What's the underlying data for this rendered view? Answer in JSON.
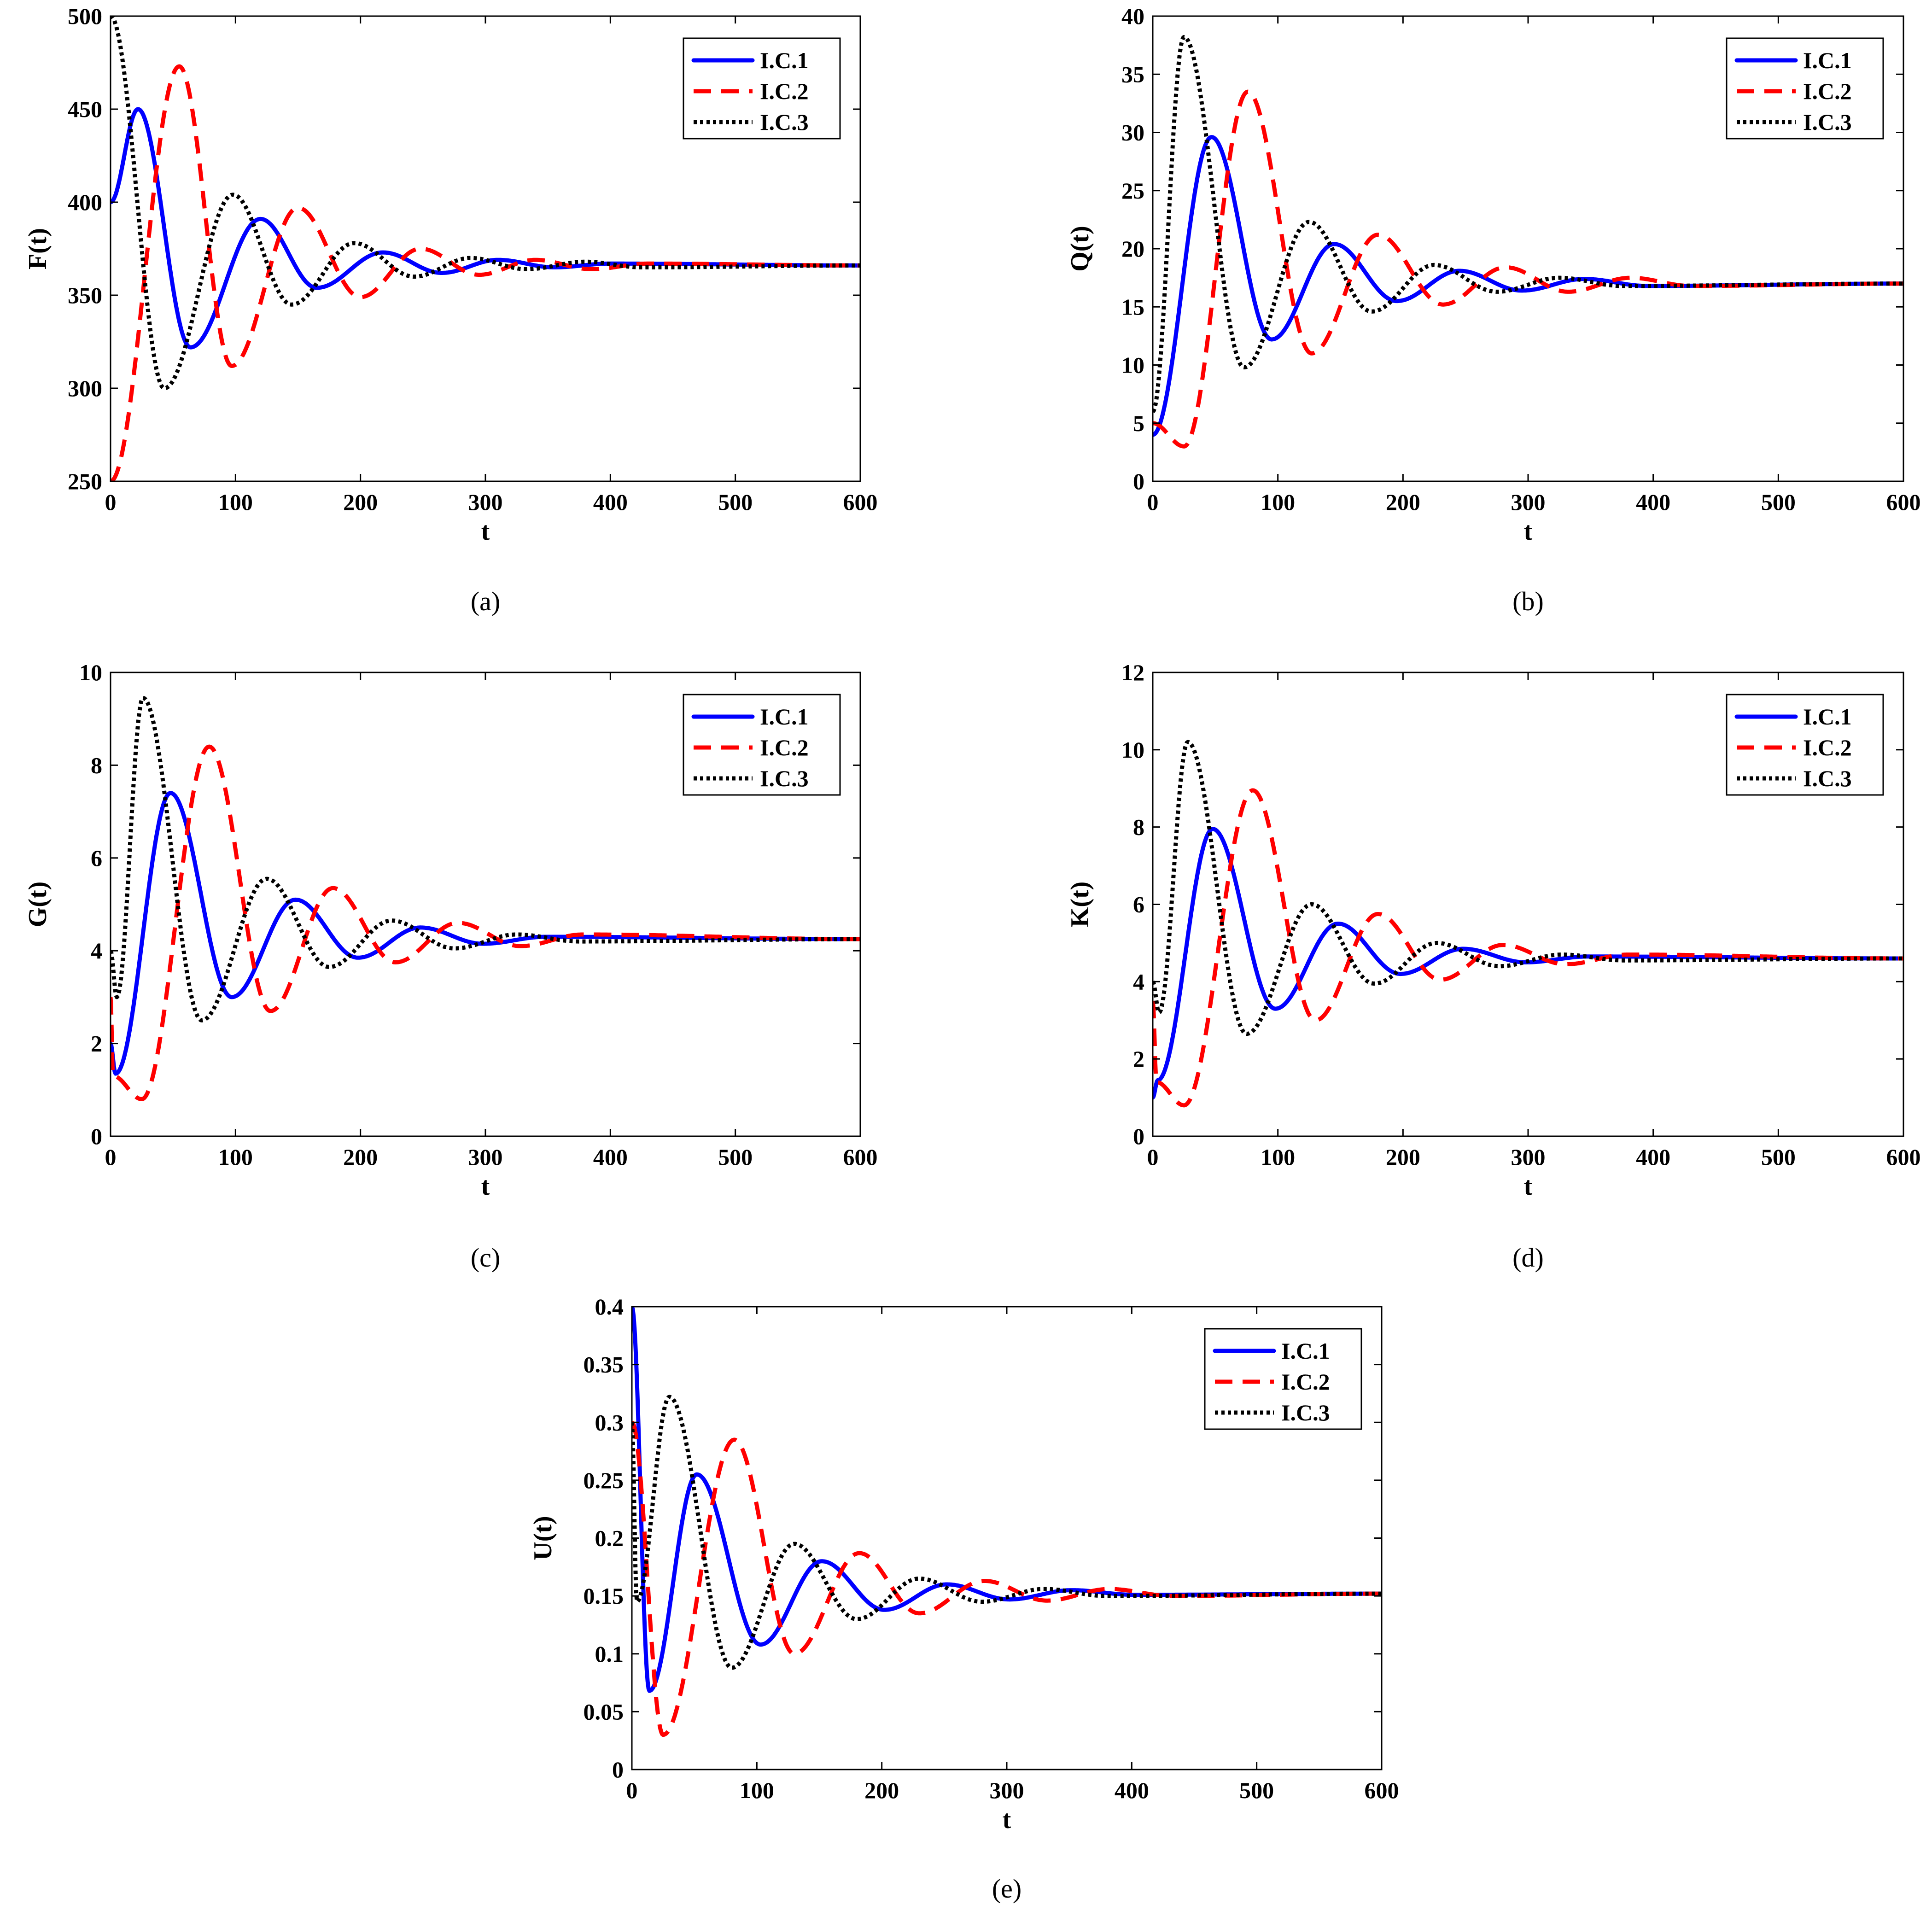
{
  "figure": {
    "line_styles": {
      "I.C.1": {
        "color": "#0000ff",
        "dash": "solid"
      },
      "I.C.2": {
        "color": "#ff0000",
        "dash": "dashed"
      },
      "I.C.3": {
        "color": "#000000",
        "dash": "dotted"
      }
    }
  },
  "chart_data": [
    {
      "type": "line",
      "caption": "(a)",
      "xlabel": "t",
      "ylabel": "F(t)",
      "xlim": [
        0,
        600
      ],
      "ylim": [
        250,
        500
      ],
      "xticks": [
        0,
        100,
        200,
        300,
        400,
        500,
        600
      ],
      "yticks": [
        250,
        300,
        350,
        400,
        450,
        500
      ],
      "grid": false,
      "legend_position": "top-right",
      "equilibrium": 366,
      "series": [
        {
          "name": "I.C.1",
          "color": "#0000ff",
          "dash": "solid",
          "x": [
            0,
            22,
            64,
            120,
            165,
            218,
            265,
            310,
            355,
            400,
            600
          ],
          "y": [
            400,
            450,
            322,
            391,
            354,
            373,
            362,
            369,
            365,
            367,
            366
          ]
        },
        {
          "name": "I.C.2",
          "color": "#ff0000",
          "dash": "dashed",
          "x": [
            0,
            55,
            97,
            150,
            200,
            248,
            295,
            340,
            385,
            430,
            600
          ],
          "y": [
            250,
            473,
            312,
            397,
            349,
            375,
            361,
            369,
            364,
            367,
            366
          ]
        },
        {
          "name": "I.C.3",
          "color": "#000000",
          "dash": "dotted",
          "x": [
            0,
            43,
            98,
            145,
            195,
            243,
            288,
            333,
            380,
            425,
            600
          ],
          "y": [
            500,
            300,
            404,
            345,
            378,
            360,
            370,
            364,
            368,
            365,
            366
          ]
        }
      ]
    },
    {
      "type": "line",
      "caption": "(b)",
      "xlabel": "t",
      "ylabel": "Q(t)",
      "xlim": [
        0,
        600
      ],
      "ylim": [
        0,
        40
      ],
      "xticks": [
        0,
        100,
        200,
        300,
        400,
        500,
        600
      ],
      "yticks": [
        0,
        5,
        10,
        15,
        20,
        25,
        30,
        35,
        40
      ],
      "grid": false,
      "legend_position": "top-right",
      "equilibrium": 17,
      "series": [
        {
          "name": "I.C.1",
          "color": "#0000ff",
          "dash": "solid",
          "x": [
            0,
            47,
            95,
            145,
            195,
            245,
            295,
            345,
            395,
            600
          ],
          "y": [
            4,
            29.6,
            12.2,
            20.4,
            15.5,
            18.1,
            16.4,
            17.4,
            16.8,
            17
          ]
        },
        {
          "name": "I.C.2",
          "color": "#ff0000",
          "dash": "dashed",
          "x": [
            0,
            25,
            76,
            127,
            180,
            232,
            282,
            332,
            382,
            430,
            600
          ],
          "y": [
            5,
            3,
            33.5,
            11,
            21.2,
            15.2,
            18.4,
            16.3,
            17.5,
            16.8,
            17
          ]
        },
        {
          "name": "I.C.3",
          "color": "#000000",
          "dash": "dotted",
          "x": [
            0,
            25,
            73,
            125,
            175,
            225,
            275,
            325,
            375,
            600
          ],
          "y": [
            6,
            38.2,
            9.8,
            22.3,
            14.6,
            18.6,
            16.3,
            17.5,
            16.8,
            17
          ]
        }
      ]
    },
    {
      "type": "line",
      "caption": "(c)",
      "xlabel": "t",
      "ylabel": "G(t)",
      "xlim": [
        0,
        600
      ],
      "ylim": [
        0,
        10
      ],
      "xticks": [
        0,
        100,
        200,
        300,
        400,
        500,
        600
      ],
      "yticks": [
        0,
        2,
        4,
        6,
        8,
        10
      ],
      "grid": false,
      "legend_position": "top-right",
      "equilibrium": 4.25,
      "series": [
        {
          "name": "I.C.1",
          "color": "#0000ff",
          "dash": "solid",
          "x": [
            0,
            4,
            48,
            97,
            148,
            198,
            248,
            298,
            348,
            600
          ],
          "y": [
            2,
            1.35,
            7.4,
            3.0,
            5.1,
            3.85,
            4.5,
            4.15,
            4.3,
            4.25
          ]
        },
        {
          "name": "I.C.2",
          "color": "#ff0000",
          "dash": "dashed",
          "x": [
            0,
            2,
            25,
            79,
            128,
            178,
            228,
            278,
            328,
            378,
            600
          ],
          "y": [
            3,
            1.3,
            0.8,
            8.4,
            2.7,
            5.35,
            3.75,
            4.6,
            4.1,
            4.35,
            4.25
          ]
        },
        {
          "name": "I.C.3",
          "color": "#000000",
          "dash": "dotted",
          "x": [
            0,
            5,
            26,
            73,
            125,
            175,
            225,
            275,
            325,
            375,
            600
          ],
          "y": [
            4,
            3.0,
            9.45,
            2.5,
            5.55,
            3.65,
            4.65,
            4.05,
            4.35,
            4.2,
            4.25
          ]
        }
      ]
    },
    {
      "type": "line",
      "caption": "(d)",
      "xlabel": "t",
      "ylabel": "K(t)",
      "xlim": [
        0,
        600
      ],
      "ylim": [
        0,
        12
      ],
      "xticks": [
        0,
        100,
        200,
        300,
        400,
        500,
        600
      ],
      "yticks": [
        0,
        2,
        4,
        6,
        8,
        10,
        12
      ],
      "grid": false,
      "legend_position": "top-right",
      "equilibrium": 4.6,
      "series": [
        {
          "name": "I.C.1",
          "color": "#0000ff",
          "dash": "solid",
          "x": [
            0,
            4,
            48,
            98,
            148,
            198,
            248,
            298,
            348,
            600
          ],
          "y": [
            1,
            1.45,
            7.95,
            3.3,
            5.5,
            4.2,
            4.85,
            4.5,
            4.65,
            4.6
          ]
        },
        {
          "name": "I.C.2",
          "color": "#ff0000",
          "dash": "dashed",
          "x": [
            0,
            3,
            25,
            80,
            130,
            180,
            230,
            280,
            330,
            380,
            600
          ],
          "y": [
            3.5,
            1.4,
            0.8,
            8.95,
            3.0,
            5.75,
            4.05,
            4.95,
            4.45,
            4.7,
            4.6
          ]
        },
        {
          "name": "I.C.3",
          "color": "#000000",
          "dash": "dotted",
          "x": [
            0,
            5,
            28,
            75,
            127,
            177,
            227,
            277,
            327,
            377,
            600
          ],
          "y": [
            4,
            3.2,
            10.2,
            2.65,
            6.0,
            3.95,
            5.0,
            4.4,
            4.7,
            4.55,
            4.6
          ]
        }
      ]
    },
    {
      "type": "line",
      "caption": "(e)",
      "xlabel": "t",
      "ylabel": "U(t)",
      "xlim": [
        0,
        600
      ],
      "ylim": [
        0,
        0.4
      ],
      "xticks": [
        0,
        100,
        200,
        300,
        400,
        500,
        600
      ],
      "yticks": [
        0,
        0.05,
        0.1,
        0.15,
        0.2,
        0.25,
        0.3,
        0.35,
        0.4
      ],
      "ytick_labels": [
        "0",
        "0.05",
        "0.1",
        "0.15",
        "0.2",
        "0.25",
        "0.3",
        "0.35",
        "0.4"
      ],
      "grid": false,
      "legend_position": "top-right",
      "equilibrium": 0.152,
      "series": [
        {
          "name": "I.C.1",
          "color": "#0000ff",
          "dash": "solid",
          "x": [
            0,
            14,
            52,
            103,
            152,
            202,
            252,
            302,
            352,
            402,
            600
          ],
          "y": [
            0.4,
            0.068,
            0.255,
            0.108,
            0.18,
            0.138,
            0.16,
            0.147,
            0.155,
            0.151,
            0.152
          ]
        },
        {
          "name": "I.C.2",
          "color": "#ff0000",
          "dash": "dashed",
          "x": [
            0,
            25,
            82,
            130,
            182,
            230,
            282,
            332,
            382,
            432,
            600
          ],
          "y": [
            0.3,
            0.03,
            0.285,
            0.1,
            0.187,
            0.135,
            0.163,
            0.146,
            0.156,
            0.15,
            0.152
          ]
        },
        {
          "name": "I.C.3",
          "color": "#000000",
          "dash": "dotted",
          "x": [
            0,
            4,
            30,
            80,
            130,
            180,
            230,
            280,
            330,
            380,
            600
          ],
          "y": [
            0.3,
            0.145,
            0.322,
            0.088,
            0.195,
            0.13,
            0.165,
            0.145,
            0.156,
            0.15,
            0.152
          ]
        }
      ]
    }
  ]
}
